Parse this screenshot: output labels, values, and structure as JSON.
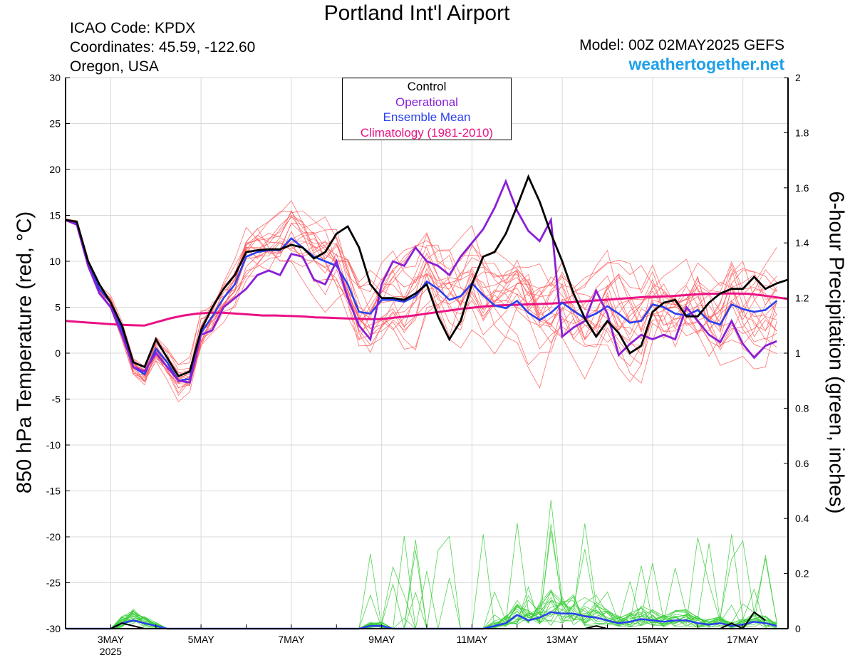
{
  "header": {
    "title": "Portland Int'l Airport",
    "icao": "ICAO Code: KPDX",
    "coordinates": "Coordinates: 45.59, -122.60",
    "region": "Oregon, USA",
    "model": "Model: 00Z 02MAY2025 GEFS",
    "site": "weathertogether.net"
  },
  "legend": {
    "items": [
      {
        "label": "Control",
        "color": "#000000"
      },
      {
        "label": "Operational",
        "color": "#8a1fd6"
      },
      {
        "label": "Ensemble Mean",
        "color": "#2a3ff0"
      },
      {
        "label": "Climatology (1981-2010)",
        "color": "#ea1184"
      }
    ]
  },
  "colors": {
    "members": "#ff5a5a",
    "precip_members": "#35cc35",
    "control": "#000000",
    "operational": "#8a1fd6",
    "mean": "#2a3ff0",
    "climatology": "#ea1184"
  },
  "chart_data": {
    "type": "line",
    "title": "Portland Int'l Airport",
    "ylabel": "850 hPa Temperature (red, °C)",
    "y2label": "6-hour Precipitation (green, inches)",
    "ylim": [
      -30,
      30
    ],
    "y2lim": [
      0,
      2
    ],
    "yticks": [
      30,
      25,
      20,
      15,
      10,
      5,
      0,
      -5,
      -10,
      -15,
      -20,
      -25,
      -30
    ],
    "y2ticks": [
      2,
      1.8,
      1.6,
      1.4,
      1.2,
      1,
      0.8,
      0.6,
      0.4,
      0.2,
      0
    ],
    "x_start": "02MAY 00Z",
    "x_step_hours": 6,
    "x_ticks": [
      {
        "label": "3MAY",
        "sublabel": "2025",
        "step": 4
      },
      {
        "label": "5MAY",
        "step": 12
      },
      {
        "label": "7MAY",
        "step": 20
      },
      {
        "label": "9MAY",
        "step": 28
      },
      {
        "label": "11MAY",
        "step": 36
      },
      {
        "label": "13MAY",
        "step": 44
      },
      {
        "label": "15MAY",
        "step": 52
      },
      {
        "label": "17MAY",
        "step": 60
      }
    ],
    "grid": true,
    "legend_position": "top-center",
    "temperature": {
      "control": [
        14.5,
        14.3,
        10,
        7.5,
        5.5,
        3,
        -1,
        -1.5,
        1.5,
        -0.5,
        -2.5,
        -2,
        2.5,
        5,
        7,
        8.5,
        11,
        11.2,
        11.3,
        11.3,
        11.8,
        11.5,
        10.3,
        11,
        13,
        13.8,
        11.5,
        7.5,
        6,
        6,
        5.8,
        6.5,
        7.5,
        4,
        1.5,
        3.5,
        7.5,
        10.5,
        11,
        13,
        16,
        19.2,
        16.5,
        13,
        10,
        6.5,
        3.8,
        1.8,
        3.5,
        2.2,
        0,
        0.8,
        4.5,
        5.5,
        5.8,
        4,
        4,
        5.5,
        6.5,
        7,
        7,
        8.3,
        7,
        7.6,
        8
      ],
      "operational": [
        14.5,
        14,
        9.5,
        6.5,
        5,
        2,
        -1.5,
        -2,
        0,
        -1.5,
        -3,
        -3.2,
        2,
        2.5,
        5,
        6,
        7,
        8.5,
        9,
        8.5,
        10.8,
        10.5,
        8,
        7.5,
        10,
        6,
        3,
        1.5,
        7.5,
        10,
        9.5,
        11.5,
        10,
        9.5,
        8.5,
        10.5,
        12,
        13.5,
        15.8,
        18.7,
        15.5,
        13.3,
        12.2,
        14.5,
        1.8,
        2.8,
        3.5,
        6.8,
        4.3,
        -0.2,
        1,
        2,
        1.5,
        2,
        1.5,
        5,
        3.5,
        2,
        1.2,
        3.5,
        1,
        -0.5,
        0.8,
        1.3
      ],
      "mean": [
        14.5,
        14.2,
        9.8,
        7,
        5.5,
        2.5,
        -1.5,
        -2.3,
        0.5,
        -1,
        -3,
        -2.8,
        2.2,
        4,
        6,
        7.5,
        10.5,
        11,
        11.2,
        11.2,
        12.5,
        11.5,
        10.5,
        10,
        9.5,
        7.5,
        4.5,
        4.3,
        5.8,
        5.8,
        5.6,
        6.2,
        7.8,
        7,
        5.8,
        6.2,
        7.6,
        6.3,
        5.2,
        4.9,
        5.7,
        4.4,
        3.6,
        4.4,
        5.5,
        4.6,
        3.8,
        4.3,
        5.1,
        4.3,
        3.3,
        3.5,
        5.3,
        5,
        4.3,
        4.1,
        4.7,
        3.5,
        3.1,
        5.3,
        4.8,
        4.5,
        4.7,
        5.7
      ],
      "climatology": [
        3.5,
        3.4,
        3.3,
        3.2,
        3.1,
        3.05,
        3.0,
        3.4,
        3.8,
        4.1,
        4.3,
        4.4,
        4.4,
        4.3,
        4.2,
        4.1,
        4.1,
        4.05,
        4.0,
        3.9,
        3.85,
        3.8,
        3.75,
        3.7,
        3.7,
        3.85,
        4.0,
        4.2,
        4.4,
        4.6,
        4.8,
        4.95,
        5.1,
        5.2,
        5.25,
        5.3,
        5.35,
        5.4,
        5.5,
        5.6,
        5.7,
        5.8,
        5.9,
        6.0,
        6.1,
        6.15,
        6.2,
        6.3,
        6.4,
        6.45,
        6.5,
        6.5,
        6.45,
        6.3,
        6.1,
        5.9
      ]
    },
    "precipitation": {
      "control": [
        0,
        0,
        0,
        0,
        0,
        0.02,
        0.01,
        0,
        0,
        0,
        0,
        0,
        0,
        0,
        0,
        0,
        0,
        0,
        0,
        0,
        0,
        0,
        0,
        0,
        0,
        0,
        0,
        0,
        0,
        0,
        0,
        0,
        0,
        0,
        0,
        0,
        0,
        0,
        0,
        0,
        0,
        0,
        0,
        0,
        0,
        0,
        0,
        0.01,
        0,
        0,
        0,
        0,
        0,
        0,
        0,
        0,
        0,
        0,
        0,
        0.02,
        0,
        0.06,
        0.03
      ],
      "mean": [
        0,
        0,
        0,
        0,
        0,
        0.02,
        0.03,
        0.02,
        0.01,
        0,
        0,
        0,
        0,
        0,
        0,
        0,
        0,
        0,
        0,
        0,
        0,
        0,
        0,
        0,
        0,
        0,
        0,
        0.01,
        0.01,
        0,
        0,
        0,
        0,
        0,
        0,
        0,
        0,
        0,
        0.01,
        0.02,
        0.05,
        0.03,
        0.04,
        0.06,
        0.055,
        0.055,
        0.045,
        0.04,
        0.03,
        0.02,
        0.025,
        0.035,
        0.03,
        0.025,
        0.03,
        0.03,
        0.02,
        0.015,
        0.02,
        0.01,
        0.015,
        0.025,
        0.02,
        0.01
      ]
    }
  }
}
